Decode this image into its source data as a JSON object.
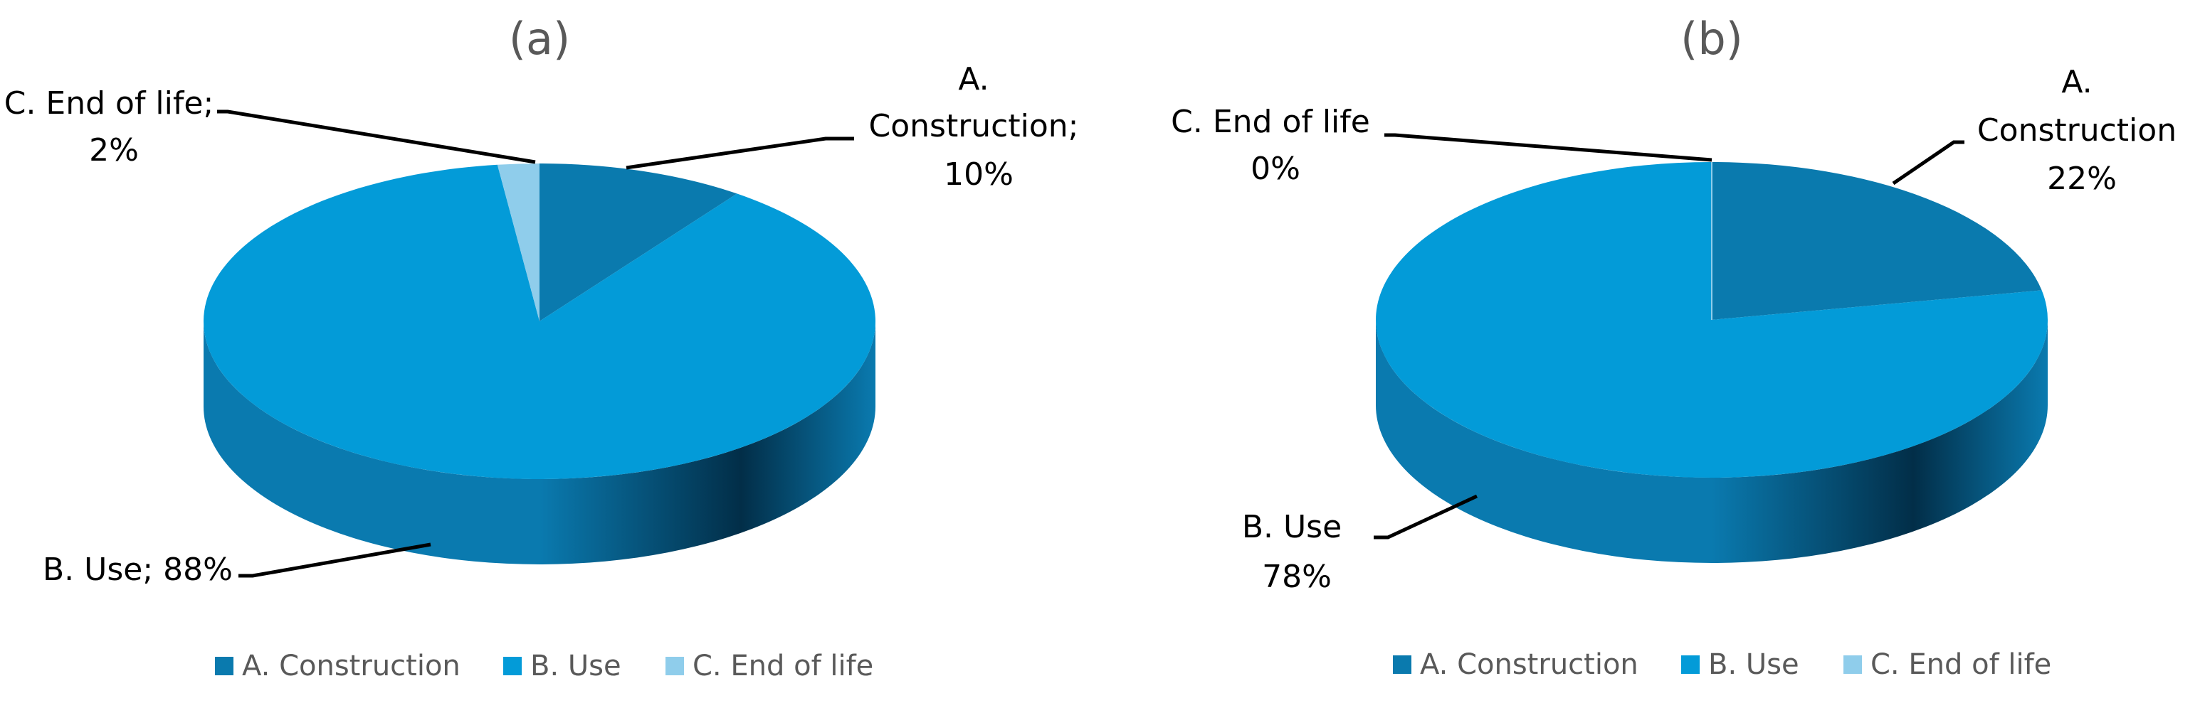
{
  "chart_data": [
    {
      "type": "pie",
      "title": "(a)",
      "categories": [
        "A. Construction",
        "B. Use",
        "C. End of life"
      ],
      "values": [
        10,
        88,
        2
      ],
      "unit": "%",
      "labels": [
        [
          "A.",
          "Construction;",
          "10%"
        ],
        [
          "B. Use; 88%"
        ],
        [
          "C. End of life;",
          "2%"
        ]
      ],
      "legend": [
        "A. Construction",
        "B. Use",
        "C. End of life"
      ],
      "legend_position": "bottom"
    },
    {
      "type": "pie",
      "title": "(b)",
      "categories": [
        "A. Construction",
        "B. Use",
        "C. End of life"
      ],
      "values": [
        22,
        78,
        0
      ],
      "unit": "%",
      "labels": [
        [
          "A.",
          "Construction",
          "22%"
        ],
        [
          "B. Use",
          "78%"
        ],
        [
          "C. End of life",
          "0%"
        ]
      ],
      "legend": [
        "A. Construction",
        "B. Use",
        "C. End of life"
      ],
      "legend_position": "bottom"
    }
  ],
  "colors": {
    "A. Construction": "#0A7AAE",
    "B. Use": "#039BD8",
    "C. End of life": "#8FCDEB",
    "side_dark": "#022E48",
    "side_light": "#0A7AAF",
    "title": "#595959",
    "text": "#000000"
  }
}
